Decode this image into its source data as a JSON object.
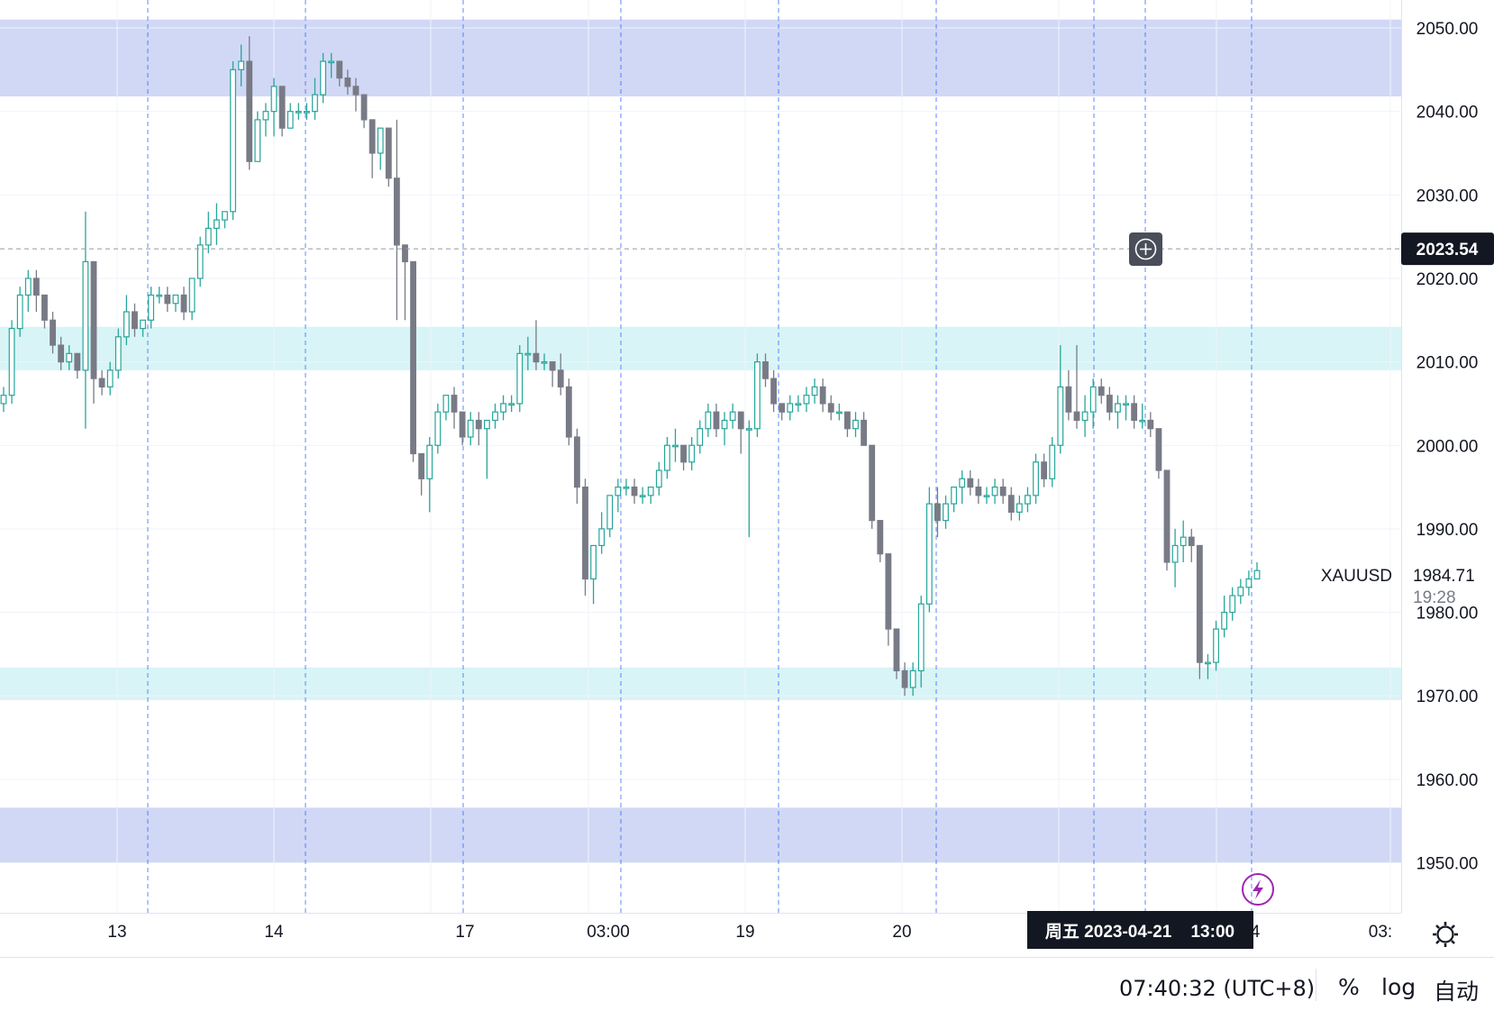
{
  "symbol": "XAUUSD",
  "chart_data": {
    "type": "candlestick",
    "title": "XAUUSD",
    "ylim": [
      1944,
      2054
    ],
    "y_ticks": [
      1950,
      1960,
      1970,
      1980,
      1990,
      2000,
      2010,
      2020,
      2030,
      2040,
      2050
    ],
    "y_tick_labels": [
      "1950.00",
      "1960.00",
      "1970.00",
      "1980.00",
      "1990.00",
      "2000.00",
      "2010.00",
      "2020.00",
      "2030.00",
      "2040.00",
      "2050.00"
    ],
    "x_tick_labels": [
      "13",
      "14",
      "17",
      "03:00",
      "19",
      "20",
      "4",
      "03:"
    ],
    "zones": [
      {
        "from": 2041.8,
        "to": 2051.0,
        "color": "#d1d8f5"
      },
      {
        "from": 2009.0,
        "to": 2014.2,
        "color": "#d8f4f6"
      },
      {
        "from": 1969.5,
        "to": 1973.4,
        "color": "#d8f4f6"
      },
      {
        "from": 1950.0,
        "to": 1956.6,
        "color": "#d1d8f5"
      }
    ],
    "candles_ohlc": [
      [
        2005,
        2007,
        2004,
        2006
      ],
      [
        2006,
        2015,
        2005,
        2014
      ],
      [
        2014,
        2019,
        2013,
        2018
      ],
      [
        2018,
        2021,
        2016,
        2020
      ],
      [
        2020,
        2021,
        2016,
        2018
      ],
      [
        2018,
        2018,
        2014,
        2015
      ],
      [
        2015,
        2016,
        2011,
        2012
      ],
      [
        2012,
        2013,
        2009,
        2010
      ],
      [
        2010,
        2012,
        2009,
        2011
      ],
      [
        2011,
        2011,
        2008,
        2009
      ],
      [
        2009,
        2028,
        2002,
        2022
      ],
      [
        2022,
        2022,
        2005,
        2008
      ],
      [
        2008,
        2009,
        2006,
        2007
      ],
      [
        2007,
        2010,
        2006,
        2009
      ],
      [
        2009,
        2014,
        2008,
        2013
      ],
      [
        2013,
        2018,
        2012,
        2016
      ],
      [
        2016,
        2017,
        2013,
        2014
      ],
      [
        2014,
        2015,
        2013,
        2015
      ],
      [
        2015,
        2019,
        2014,
        2018
      ],
      [
        2018,
        2019,
        2017,
        2018
      ],
      [
        2018,
        2019,
        2016,
        2017
      ],
      [
        2017,
        2018,
        2016,
        2018
      ],
      [
        2018,
        2019,
        2015,
        2016
      ],
      [
        2016,
        2020,
        2015,
        2020
      ],
      [
        2020,
        2025,
        2019,
        2024
      ],
      [
        2024,
        2028,
        2023,
        2026
      ],
      [
        2026,
        2029,
        2024,
        2027
      ],
      [
        2027,
        2028,
        2026,
        2028
      ],
      [
        2028,
        2046,
        2027,
        2045
      ],
      [
        2045,
        2048,
        2043,
        2046
      ],
      [
        2046,
        2049,
        2033,
        2034
      ],
      [
        2034,
        2040,
        2034,
        2039
      ],
      [
        2039,
        2041,
        2037,
        2040
      ],
      [
        2040,
        2044,
        2037,
        2043
      ],
      [
        2043,
        2043,
        2037,
        2038
      ],
      [
        2038,
        2041,
        2038,
        2040
      ],
      [
        2040,
        2041,
        2039,
        2040
      ],
      [
        2040,
        2041,
        2039,
        2040
      ],
      [
        2040,
        2044,
        2039,
        2042
      ],
      [
        2042,
        2047,
        2041,
        2046
      ],
      [
        2046,
        2047,
        2044,
        2046
      ],
      [
        2046,
        2046,
        2043,
        2044
      ],
      [
        2044,
        2045,
        2042,
        2043
      ],
      [
        2043,
        2044,
        2040,
        2042
      ],
      [
        2042,
        2042,
        2038,
        2039
      ],
      [
        2039,
        2039,
        2032,
        2035
      ],
      [
        2035,
        2038,
        2033,
        2038
      ],
      [
        2038,
        2038,
        2031,
        2032
      ],
      [
        2032,
        2039,
        2015,
        2024
      ],
      [
        2024,
        2024,
        2015,
        2022
      ],
      [
        2022,
        2022,
        1998,
        1999
      ],
      [
        1999,
        1999,
        1994,
        1996
      ],
      [
        1996,
        2001,
        1992,
        2000
      ],
      [
        2000,
        2005,
        1999,
        2004
      ],
      [
        2004,
        2006,
        2003,
        2006
      ],
      [
        2006,
        2007,
        2002,
        2004
      ],
      [
        2004,
        2004,
        2000,
        2001
      ],
      [
        2001,
        2004,
        2000,
        2003
      ],
      [
        2003,
        2004,
        2000,
        2002
      ],
      [
        2002,
        2003,
        1996,
        2003
      ],
      [
        2003,
        2005,
        2002,
        2004
      ],
      [
        2004,
        2006,
        2003,
        2005
      ],
      [
        2005,
        2006,
        2004,
        2005
      ],
      [
        2005,
        2012,
        2004,
        2011
      ],
      [
        2011,
        2013,
        2009,
        2011
      ],
      [
        2011,
        2015,
        2009,
        2010
      ],
      [
        2010,
        2011,
        2009,
        2010
      ],
      [
        2010,
        2010,
        2007,
        2009
      ],
      [
        2009,
        2011,
        2006,
        2007
      ],
      [
        2007,
        2008,
        2000,
        2001
      ],
      [
        2001,
        2002,
        1993,
        1995
      ],
      [
        1995,
        1996,
        1982,
        1984
      ],
      [
        1984,
        1988,
        1981,
        1988
      ],
      [
        1988,
        1992,
        1987,
        1990
      ],
      [
        1990,
        1994,
        1989,
        1994
      ],
      [
        1994,
        1996,
        1992,
        1995
      ],
      [
        1995,
        1996,
        1994,
        1995
      ],
      [
        1995,
        1996,
        1993,
        1994
      ],
      [
        1994,
        1995,
        1993,
        1994
      ],
      [
        1994,
        1995,
        1993,
        1995
      ],
      [
        1995,
        1998,
        1994,
        1997
      ],
      [
        1997,
        2001,
        1996,
        2000
      ],
      [
        2000,
        2002,
        1998,
        2000
      ],
      [
        2000,
        2000,
        1997,
        1998
      ],
      [
        1998,
        2001,
        1997,
        2000
      ],
      [
        2000,
        2003,
        1999,
        2002
      ],
      [
        2002,
        2005,
        2001,
        2004
      ],
      [
        2004,
        2005,
        2001,
        2002
      ],
      [
        2002,
        2004,
        2000,
        2003
      ],
      [
        2003,
        2005,
        2002,
        2004
      ],
      [
        2004,
        2004,
        1999,
        2002
      ],
      [
        2002,
        2003,
        1989,
        2002
      ],
      [
        2002,
        2011,
        2001,
        2010
      ],
      [
        2010,
        2011,
        2007,
        2008
      ],
      [
        2008,
        2009,
        2004,
        2005
      ],
      [
        2005,
        2005,
        2003,
        2004
      ],
      [
        2004,
        2006,
        2003,
        2005
      ],
      [
        2005,
        2006,
        2004,
        2005
      ],
      [
        2005,
        2007,
        2004,
        2006
      ],
      [
        2006,
        2008,
        2005,
        2007
      ],
      [
        2007,
        2008,
        2004,
        2005
      ],
      [
        2005,
        2006,
        2003,
        2004
      ],
      [
        2004,
        2005,
        2003,
        2004
      ],
      [
        2004,
        2004,
        2001,
        2002
      ],
      [
        2002,
        2004,
        2001,
        2003
      ],
      [
        2003,
        2004,
        2000,
        2000
      ],
      [
        2000,
        2000,
        1990,
        1991
      ],
      [
        1991,
        1991,
        1986,
        1987
      ],
      [
        1987,
        1987,
        1976,
        1978
      ],
      [
        1978,
        1978,
        1972,
        1973
      ],
      [
        1973,
        1974,
        1970,
        1971
      ],
      [
        1971,
        1974,
        1970,
        1973
      ],
      [
        1973,
        1982,
        1971,
        1981
      ],
      [
        1981,
        1995,
        1980,
        1993
      ],
      [
        1993,
        1995,
        1989,
        1991
      ],
      [
        1991,
        1994,
        1990,
        1993
      ],
      [
        1993,
        1995,
        1992,
        1995
      ],
      [
        1995,
        1997,
        1993,
        1996
      ],
      [
        1996,
        1997,
        1994,
        1995
      ],
      [
        1995,
        1996,
        1993,
        1994
      ],
      [
        1994,
        1995,
        1993,
        1994
      ],
      [
        1994,
        1996,
        1993,
        1995
      ],
      [
        1995,
        1996,
        1993,
        1994
      ],
      [
        1994,
        1995,
        1991,
        1992
      ],
      [
        1992,
        1994,
        1991,
        1993
      ],
      [
        1993,
        1995,
        1992,
        1994
      ],
      [
        1994,
        1999,
        1993,
        1998
      ],
      [
        1998,
        1999,
        1995,
        1996
      ],
      [
        1996,
        2001,
        1995,
        2000
      ],
      [
        2000,
        2012,
        1999,
        2007
      ],
      [
        2007,
        2009,
        2003,
        2004
      ],
      [
        2004,
        2012,
        2002,
        2003
      ],
      [
        2003,
        2006,
        2001,
        2004
      ],
      [
        2004,
        2008,
        2002,
        2007
      ],
      [
        2007,
        2008,
        2005,
        2006
      ],
      [
        2006,
        2007,
        2003,
        2004
      ],
      [
        2004,
        2006,
        2002,
        2005
      ],
      [
        2005,
        2006,
        2003,
        2005
      ],
      [
        2005,
        2006,
        2002,
        2003
      ],
      [
        2003,
        2005,
        2002,
        2003
      ],
      [
        2003,
        2004,
        2001,
        2002
      ],
      [
        2002,
        2002,
        1996,
        1997
      ],
      [
        1997,
        1997,
        1985,
        1986
      ],
      [
        1986,
        1990,
        1983,
        1988
      ],
      [
        1988,
        1991,
        1986,
        1989
      ],
      [
        1989,
        1990,
        1986,
        1988
      ],
      [
        1988,
        1988,
        1972,
        1974
      ],
      [
        1974,
        1975,
        1972,
        1974
      ],
      [
        1974,
        1979,
        1973,
        1978
      ],
      [
        1978,
        1982,
        1977,
        1980
      ],
      [
        1980,
        1983,
        1979,
        1982
      ],
      [
        1982,
        1984,
        1981,
        1983
      ],
      [
        1983,
        1985,
        1982,
        1984
      ],
      [
        1984,
        1986,
        1984,
        1985
      ]
    ],
    "current_price": "1984.71",
    "countdown": "19:28",
    "crosshair_price": "2023.54",
    "crosshair_time": "周五 2023-04-21    13:00"
  },
  "status_bar": {
    "clock": "07:40:32 (UTC+8)",
    "percent_label": "%",
    "log_label": "log",
    "auto_label": "自动"
  },
  "colors": {
    "up": "#26a69a",
    "down": "#787b86",
    "grid": "#f0f3fa",
    "vline": "#2962ff",
    "tooltip": "#131722",
    "alert": "#9c27b0"
  }
}
